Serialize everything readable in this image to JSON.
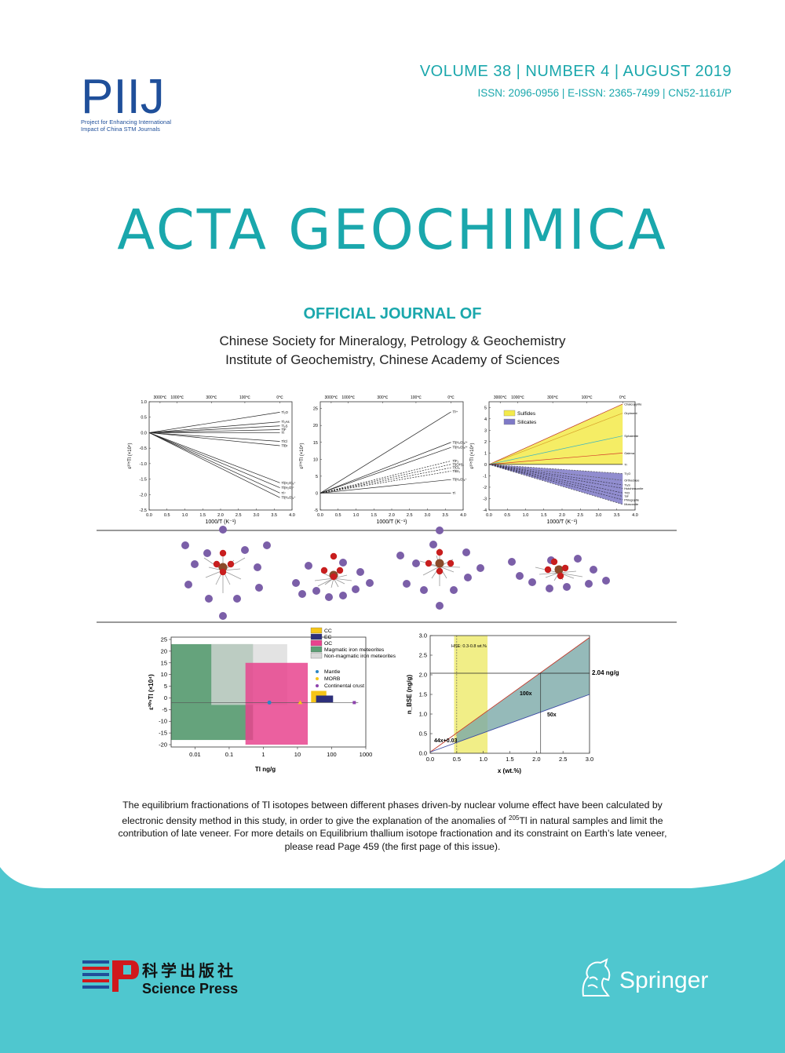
{
  "colors": {
    "teal": "#1aa7ac",
    "band": "#4fc7cf",
    "dark_blue": "#1f4f9a",
    "red": "#d0191c"
  },
  "header": {
    "logo_letters": "PIIJ",
    "logo_sub1": "Project for Enhancing International",
    "logo_sub2": "Impact of China STM Journals",
    "issue": "VOLUME 38 | NUMBER 4 | AUGUST 2019",
    "issn": "ISSN: 2096-0956 | E-ISSN: 2365-7499 | CN52-1161/P"
  },
  "title": "ACTA GEOCHIMICA",
  "official": {
    "heading": "OFFICIAL JOURNAL OF",
    "society1": "Chinese Society for Mineralogy, Petrology & Geochemistry",
    "society2": "Institute of Geochemistry, Chinese Academy of Sciences"
  },
  "chart_data": [
    {
      "type": "line",
      "xlabel": "1000/T (K⁻¹)",
      "ylabel": "ε²⁰⁵Tl (×10⁴)",
      "top_ticks": [
        "3000℃",
        "1000℃",
        "300℃",
        "100℃",
        "0℃"
      ],
      "xlim": [
        0,
        4.0
      ],
      "ylim": [
        -2.5,
        1.0
      ],
      "xticks": [
        "0.0",
        "0.5",
        "1.0",
        "1.5",
        "2.0",
        "2.5",
        "3.0",
        "3.5",
        "4.0"
      ],
      "yticks": [
        "1.0",
        "0.5",
        "0.0",
        "-0.5",
        "-1.0",
        "-1.5",
        "-2.0",
        "-2.5"
      ],
      "series": [
        {
          "name": "Tl₂O",
          "values": [
            [
              0,
              0
            ],
            [
              3.66,
              0.66
            ]
          ]
        },
        {
          "name": "Tl₃As",
          "values": [
            [
              0,
              0
            ],
            [
              3.66,
              0.35
            ]
          ]
        },
        {
          "name": "Tl₂S",
          "values": [
            [
              0,
              0
            ],
            [
              3.66,
              0.22
            ]
          ]
        },
        {
          "name": "TlF",
          "values": [
            [
              0,
              0
            ],
            [
              3.66,
              0.1
            ]
          ]
        },
        {
          "name": "Tl",
          "values": [
            [
              0,
              0
            ],
            [
              3.66,
              0.0
            ]
          ]
        },
        {
          "name": "TlCl",
          "values": [
            [
              0,
              0
            ],
            [
              3.66,
              -0.28
            ]
          ]
        },
        {
          "name": "TlBr",
          "values": [
            [
              0,
              0
            ],
            [
              3.66,
              -0.42
            ]
          ]
        },
        {
          "name": "Tl(H₂O)₆⁺",
          "values": [
            [
              0,
              0
            ],
            [
              3.66,
              -1.62
            ]
          ]
        },
        {
          "name": "Tl(H₂O)⁺",
          "values": [
            [
              0,
              0
            ],
            [
              3.66,
              -1.78
            ]
          ]
        },
        {
          "name": "Tl⁺",
          "values": [
            [
              0,
              0
            ],
            [
              3.66,
              -1.95
            ]
          ]
        },
        {
          "name": "Tl(H₂O)₂⁺",
          "values": [
            [
              0,
              0
            ],
            [
              3.66,
              -2.1
            ]
          ]
        }
      ]
    },
    {
      "type": "line",
      "xlabel": "1000/T (K⁻¹)",
      "ylabel": "ε²⁰⁵Tl (×10⁴)",
      "top_ticks": [
        "3000℃",
        "1000℃",
        "300℃",
        "100℃",
        "0℃"
      ],
      "xlim": [
        0,
        4.0
      ],
      "ylim": [
        -5,
        27
      ],
      "xticks": [
        "0.0",
        "0.5",
        "1.0",
        "1.5",
        "2.0",
        "2.5",
        "3.0",
        "3.5",
        "4.0"
      ],
      "yticks": [
        "25",
        "20",
        "15",
        "10",
        "5",
        "0",
        "-5"
      ],
      "series": [
        {
          "name": "Tl³⁺",
          "values": [
            [
              0,
              0
            ],
            [
              3.66,
              24
            ]
          ]
        },
        {
          "name": "Tl(H₂O)₆³⁺",
          "values": [
            [
              0,
              0
            ],
            [
              3.66,
              15
            ]
          ]
        },
        {
          "name": "Tl(H₂O)₅³⁺",
          "values": [
            [
              0,
              0
            ],
            [
              3.66,
              13.5
            ]
          ]
        },
        {
          "name": "TlF₃",
          "values": [
            [
              0,
              0
            ],
            [
              3.66,
              9.5
            ]
          ]
        },
        {
          "name": "Tl(OH)₃",
          "values": [
            [
              0,
              0
            ],
            [
              3.66,
              8.5
            ]
          ]
        },
        {
          "name": "TlCl₃",
          "values": [
            [
              0,
              0
            ],
            [
              3.66,
              7.5
            ]
          ]
        },
        {
          "name": "TlBr₃",
          "values": [
            [
              0,
              0
            ],
            [
              3.66,
              6.5
            ]
          ]
        },
        {
          "name": "Tl(H₂O)₆⁺",
          "values": [
            [
              0,
              0
            ],
            [
              3.66,
              4
            ]
          ]
        },
        {
          "name": "Tl",
          "values": [
            [
              0,
              0
            ],
            [
              3.66,
              0
            ]
          ]
        }
      ]
    },
    {
      "type": "area",
      "xlabel": "1000/T (K⁻¹)",
      "ylabel": "ε²⁰⁵Tl (×10⁴)",
      "top_ticks": [
        "3000℃",
        "1000℃",
        "300℃",
        "100℃",
        "0℃"
      ],
      "xlim": [
        0,
        4.0
      ],
      "ylim": [
        -4,
        5.5
      ],
      "xticks": [
        "0.0",
        "0.5",
        "1.0",
        "1.5",
        "2.0",
        "2.5",
        "3.0",
        "3.5",
        "4.0"
      ],
      "yticks": [
        "5",
        "4",
        "3",
        "2",
        "1",
        "0",
        "-1",
        "-2",
        "-3",
        "-4"
      ],
      "legend": [
        "Sulfides",
        "Silicates"
      ],
      "legend_position": "top-left",
      "series": [
        {
          "name": "Chalcopyrite",
          "values": [
            [
              0,
              0
            ],
            [
              3.66,
              5.3
            ]
          ]
        },
        {
          "name": "Orpiment",
          "values": [
            [
              0,
              0
            ],
            [
              3.66,
              4.5
            ]
          ]
        },
        {
          "name": "Sphalerite",
          "values": [
            [
              0,
              0
            ],
            [
              3.66,
              2.5
            ]
          ]
        },
        {
          "name": "Galena",
          "values": [
            [
              0,
              0
            ],
            [
              3.66,
              1.0
            ]
          ]
        },
        {
          "name": "Tl",
          "values": [
            [
              0,
              0
            ],
            [
              3.66,
              0.0
            ]
          ]
        },
        {
          "name": "Tl₂O",
          "values": [
            [
              0,
              0
            ],
            [
              3.66,
              -0.8
            ]
          ]
        },
        {
          "name": "Orthoclase",
          "values": [
            [
              0,
              0
            ],
            [
              3.66,
              -1.4
            ]
          ]
        },
        {
          "name": "Tl₂S",
          "values": [
            [
              0,
              0
            ],
            [
              3.66,
              -1.8
            ]
          ]
        },
        {
          "name": "Hutchinsonite",
          "values": [
            [
              0,
              0
            ],
            [
              3.66,
              -2.1
            ]
          ]
        },
        {
          "name": "TlCl",
          "values": [
            [
              0,
              0
            ],
            [
              3.66,
              -2.5
            ]
          ]
        },
        {
          "name": "TlF",
          "values": [
            [
              0,
              0
            ],
            [
              3.66,
              -2.8
            ]
          ]
        },
        {
          "name": "Phlogopite",
          "values": [
            [
              0,
              0
            ],
            [
              3.66,
              -3.1
            ]
          ]
        },
        {
          "name": "Muscovite",
          "values": [
            [
              0,
              0
            ],
            [
              3.66,
              -3.5
            ]
          ]
        }
      ]
    },
    {
      "type": "scatter",
      "xlabel": "Tl ng/g",
      "ylabel": "ε²⁰⁵Tl (×10⁴)",
      "xscale": "log",
      "xlim": [
        0.002,
        1000
      ],
      "ylim": [
        -21,
        26
      ],
      "xticks": [
        "0.01",
        "0.1",
        "1",
        "10",
        "100",
        "1000"
      ],
      "yticks": [
        "25",
        "20",
        "15",
        "10",
        "5",
        "0",
        "-5",
        "-10",
        "-15",
        "-20"
      ],
      "legend_position": "top-right",
      "regions": [
        {
          "name": "Magmatic iron meteorites",
          "x": [
            0.002,
            0.5
          ],
          "y": [
            -18,
            23
          ]
        },
        {
          "name": "Non-magmatic iron meteorites",
          "x": [
            0.03,
            5
          ],
          "y": [
            -3,
            23
          ]
        },
        {
          "name": "OC",
          "x": [
            0.3,
            20
          ],
          "y": [
            -20,
            15
          ]
        },
        {
          "name": "CC",
          "x": [
            25,
            70
          ],
          "y": [
            -2,
            3
          ]
        },
        {
          "name": "EC",
          "x": [
            35,
            110
          ],
          "y": [
            -2,
            1
          ]
        }
      ],
      "points": [
        {
          "name": "Mantle",
          "x": 1.5,
          "y": -2
        },
        {
          "name": "MORB",
          "x": 12,
          "y": -2
        },
        {
          "name": "Continental crust",
          "x": 460,
          "y": -2
        }
      ]
    },
    {
      "type": "line",
      "xlabel": "x (wt.%)",
      "ylabel": "n_BSE (ng/g)",
      "xlim": [
        0,
        3.0
      ],
      "ylim": [
        0,
        3.0
      ],
      "xticks": [
        "0.0",
        "0.5",
        "1.0",
        "1.5",
        "2.0",
        "2.5",
        "3.0"
      ],
      "yticks": [
        "0.0",
        "0.5",
        "1.0",
        "1.5",
        "2.0",
        "2.5",
        "3.0"
      ],
      "band": {
        "label": "HSE: 0.3-0.8 wt.%",
        "x": [
          0.45,
          1.08
        ]
      },
      "annotations": [
        "2.04 ng/g",
        "100x",
        "50x",
        "44x+0.03"
      ],
      "hline": 2.04,
      "series": [
        {
          "name": "100x",
          "values": [
            [
              0,
              0.03
            ],
            [
              3.0,
              2.95
            ]
          ]
        },
        {
          "name": "50x",
          "values": [
            [
              0,
              0.03
            ],
            [
              3.0,
              1.5
            ]
          ]
        }
      ]
    }
  ],
  "caption": {
    "part1": "The equilibrium fractionations of Tl isotopes between different phases driven-by nuclear volume effect have been calculated by electronic density method in this study, in order to give the explanation of the anomalies of ",
    "sup": "205",
    "part2": "Tl in natural samples and limit the contribution of late veneer. For more details on Equilibrium thallium isotope fractionation and its constraint on Earth’s late veneer, please read Page 459 (the first page of this issue)."
  },
  "footer": {
    "publisher_cn": "科学出版社",
    "publisher_en": "Science Press",
    "springer": "Springer"
  }
}
